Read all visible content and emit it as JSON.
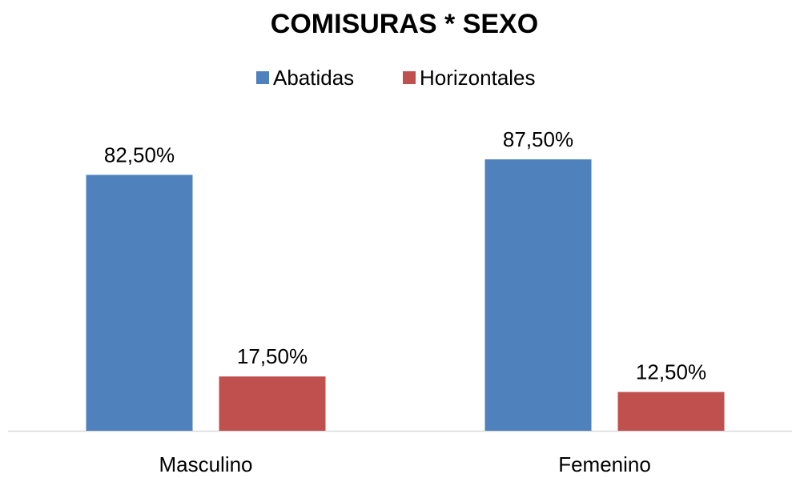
{
  "chart_data": {
    "type": "bar",
    "title": "COMISURAS * SEXO",
    "categories": [
      "Masculino",
      "Femenino"
    ],
    "series": [
      {
        "name": "Abatidas",
        "color": "#4f81bd",
        "values": [
          82.5,
          87.5
        ],
        "value_labels": [
          "82,50%",
          "87,50%"
        ]
      },
      {
        "name": "Horizontales",
        "color": "#c0504d",
        "values": [
          17.5,
          12.5
        ],
        "value_labels": [
          "17,50%",
          "12,50%"
        ]
      }
    ],
    "legend": "top",
    "grid": false
  }
}
